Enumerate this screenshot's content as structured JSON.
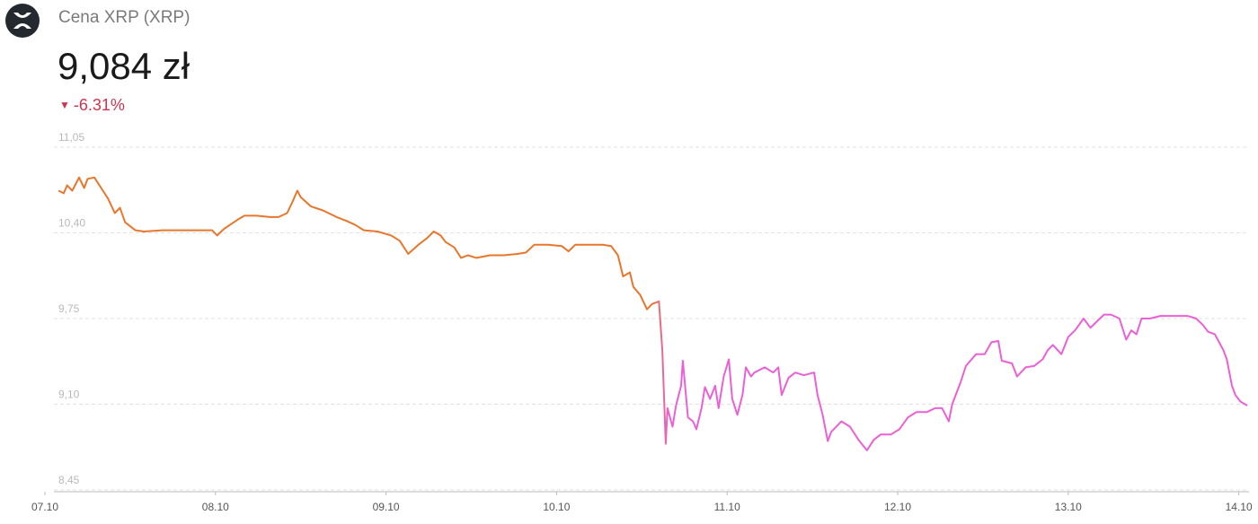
{
  "header": {
    "title": "Cena XRP (XRP)",
    "price": "9,084 zł",
    "change": "-6.31%"
  },
  "chart_data": {
    "type": "line",
    "colors": [
      "#e8762b",
      "#ec5fd5"
    ],
    "xlim": [
      0,
      7.06
    ],
    "xticks": [
      {
        "value": 0,
        "label": "07.10"
      },
      {
        "value": 1,
        "label": "08.10"
      },
      {
        "value": 2,
        "label": "09.10"
      },
      {
        "value": 3,
        "label": "10.10"
      },
      {
        "value": 4,
        "label": "11.10"
      },
      {
        "value": 5,
        "label": "12.10"
      },
      {
        "value": 6,
        "label": "13.10"
      },
      {
        "value": 7,
        "label": "14.10"
      }
    ],
    "ylim": [
      8.45,
      11.05
    ],
    "yticks": [
      {
        "value": 8.45,
        "label": "8,45"
      },
      {
        "value": 9.1,
        "label": "9,10"
      },
      {
        "value": 9.75,
        "label": "9,75"
      },
      {
        "value": 10.4,
        "label": "10,40"
      },
      {
        "value": 11.05,
        "label": "11,05"
      }
    ],
    "grid": true,
    "x": [
      0.08,
      0.11,
      0.13,
      0.16,
      0.2,
      0.23,
      0.25,
      0.29,
      0.33,
      0.37,
      0.41,
      0.44,
      0.47,
      0.53,
      0.58,
      0.69,
      0.79,
      0.9,
      0.98,
      1.01,
      1.05,
      1.13,
      1.17,
      1.24,
      1.32,
      1.37,
      1.42,
      1.45,
      1.48,
      1.5,
      1.56,
      1.63,
      1.71,
      1.77,
      1.82,
      1.87,
      1.95,
      2.03,
      2.08,
      2.13,
      2.19,
      2.24,
      2.28,
      2.32,
      2.35,
      2.4,
      2.44,
      2.48,
      2.53,
      2.61,
      2.69,
      2.77,
      2.82,
      2.87,
      2.95,
      3.03,
      3.07,
      3.11,
      3.19,
      3.27,
      3.32,
      3.36,
      3.39,
      3.43,
      3.45,
      3.49,
      3.53,
      3.56,
      3.6,
      3.62,
      3.64,
      3.65,
      3.68,
      3.7,
      3.73,
      3.74,
      3.77,
      3.8,
      3.82,
      3.85,
      3.87,
      3.9,
      3.93,
      3.95,
      3.98,
      4.01,
      4.03,
      4.06,
      4.09,
      4.11,
      4.14,
      4.16,
      4.22,
      4.27,
      4.3,
      4.32,
      4.36,
      4.4,
      4.45,
      4.51,
      4.53,
      4.56,
      4.59,
      4.61,
      4.67,
      4.72,
      4.77,
      4.82,
      4.86,
      4.9,
      4.96,
      5.01,
      5.06,
      5.11,
      5.17,
      5.22,
      5.26,
      5.3,
      5.32,
      5.37,
      5.4,
      5.46,
      5.51,
      5.55,
      5.59,
      5.61,
      5.67,
      5.7,
      5.75,
      5.8,
      5.85,
      5.88,
      5.91,
      5.96,
      6.0,
      6.04,
      6.09,
      6.13,
      6.17,
      6.21,
      6.25,
      6.3,
      6.34,
      6.37,
      6.4,
      6.43,
      6.48,
      6.54,
      6.59,
      6.64,
      6.7,
      6.75,
      6.79,
      6.82,
      6.86,
      6.91,
      6.93,
      6.96,
      6.98,
      7.01,
      7.05
    ],
    "values": [
      10.72,
      10.7,
      10.76,
      10.72,
      10.82,
      10.74,
      10.81,
      10.82,
      10.74,
      10.66,
      10.55,
      10.59,
      10.48,
      10.42,
      10.41,
      10.42,
      10.42,
      10.42,
      10.42,
      10.38,
      10.43,
      10.5,
      10.53,
      10.53,
      10.52,
      10.52,
      10.55,
      10.63,
      10.72,
      10.67,
      10.6,
      10.57,
      10.52,
      10.49,
      10.46,
      10.42,
      10.41,
      10.38,
      10.34,
      10.24,
      10.31,
      10.36,
      10.41,
      10.38,
      10.33,
      10.29,
      10.21,
      10.23,
      10.21,
      10.23,
      10.23,
      10.24,
      10.25,
      10.31,
      10.31,
      10.3,
      10.26,
      10.31,
      10.31,
      10.31,
      10.3,
      10.23,
      10.07,
      10.1,
      9.99,
      9.93,
      9.82,
      9.86,
      9.88,
      9.51,
      8.8,
      9.07,
      8.93,
      9.09,
      9.24,
      9.43,
      9.0,
      8.97,
      8.91,
      9.07,
      9.23,
      9.14,
      9.24,
      9.07,
      9.31,
      9.44,
      9.14,
      9.02,
      9.17,
      9.38,
      9.31,
      9.34,
      9.38,
      9.34,
      9.38,
      9.17,
      9.3,
      9.34,
      9.32,
      9.34,
      9.17,
      9.02,
      8.82,
      8.89,
      8.97,
      8.93,
      8.83,
      8.75,
      8.83,
      8.87,
      8.87,
      8.91,
      9.0,
      9.04,
      9.04,
      9.07,
      9.07,
      8.97,
      9.1,
      9.27,
      9.39,
      9.48,
      9.48,
      9.57,
      9.58,
      9.43,
      9.41,
      9.31,
      9.38,
      9.39,
      9.44,
      9.51,
      9.55,
      9.48,
      9.61,
      9.66,
      9.75,
      9.68,
      9.73,
      9.78,
      9.78,
      9.75,
      9.59,
      9.66,
      9.63,
      9.75,
      9.75,
      9.77,
      9.77,
      9.77,
      9.77,
      9.75,
      9.7,
      9.65,
      9.63,
      9.51,
      9.44,
      9.24,
      9.17,
      9.12,
      9.09
    ]
  }
}
